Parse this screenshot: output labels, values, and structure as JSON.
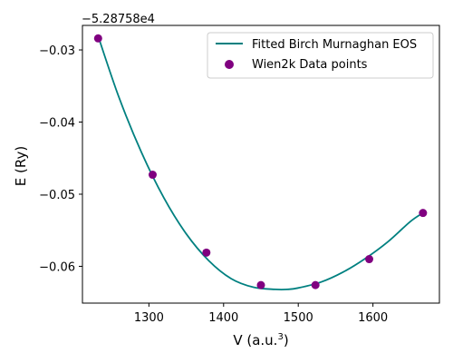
{
  "chart_data": {
    "type": "scatter",
    "title": "",
    "xlabel": "V (a.u.",
    "xlabel_superscript": "3",
    "xlabel_suffix": ")",
    "ylabel": "E (Ry)",
    "offset_text": "−5.28758e4",
    "xlim": [
      1211,
      1689
    ],
    "ylim": [
      -0.0651,
      -0.0266
    ],
    "x_ticks": [
      1300,
      1400,
      1500,
      1600
    ],
    "x_tick_labels": [
      "1300",
      "1400",
      "1500",
      "1600"
    ],
    "y_ticks": [
      -0.03,
      -0.04,
      -0.05,
      -0.06
    ],
    "y_tick_labels": [
      "−0.03",
      "−0.04",
      "−0.05",
      "−0.06"
    ],
    "grid": false,
    "legend_position": "top-right",
    "series": [
      {
        "name": "Fitted Birch Murnaghan EOS",
        "kind": "line",
        "color": "#008080",
        "x": [
          1233,
          1260,
          1290,
          1320,
          1350,
          1380,
          1410,
          1440,
          1470,
          1485,
          1500,
          1530,
          1560,
          1590,
          1620,
          1650,
          1667
        ],
        "y": [
          -0.0284,
          -0.0366,
          -0.0442,
          -0.0505,
          -0.0555,
          -0.0592,
          -0.0617,
          -0.0629,
          -0.0632,
          -0.0632,
          -0.063,
          -0.0622,
          -0.0608,
          -0.0589,
          -0.0566,
          -0.0538,
          -0.0526
        ]
      },
      {
        "name": "Wien2k Data points",
        "kind": "scatter",
        "color": "#800080",
        "x": [
          1232,
          1305,
          1377,
          1450,
          1523,
          1595,
          1667
        ],
        "y": [
          -0.0284,
          -0.0473,
          -0.0581,
          -0.0626,
          -0.0626,
          -0.059,
          -0.0526
        ]
      }
    ]
  }
}
